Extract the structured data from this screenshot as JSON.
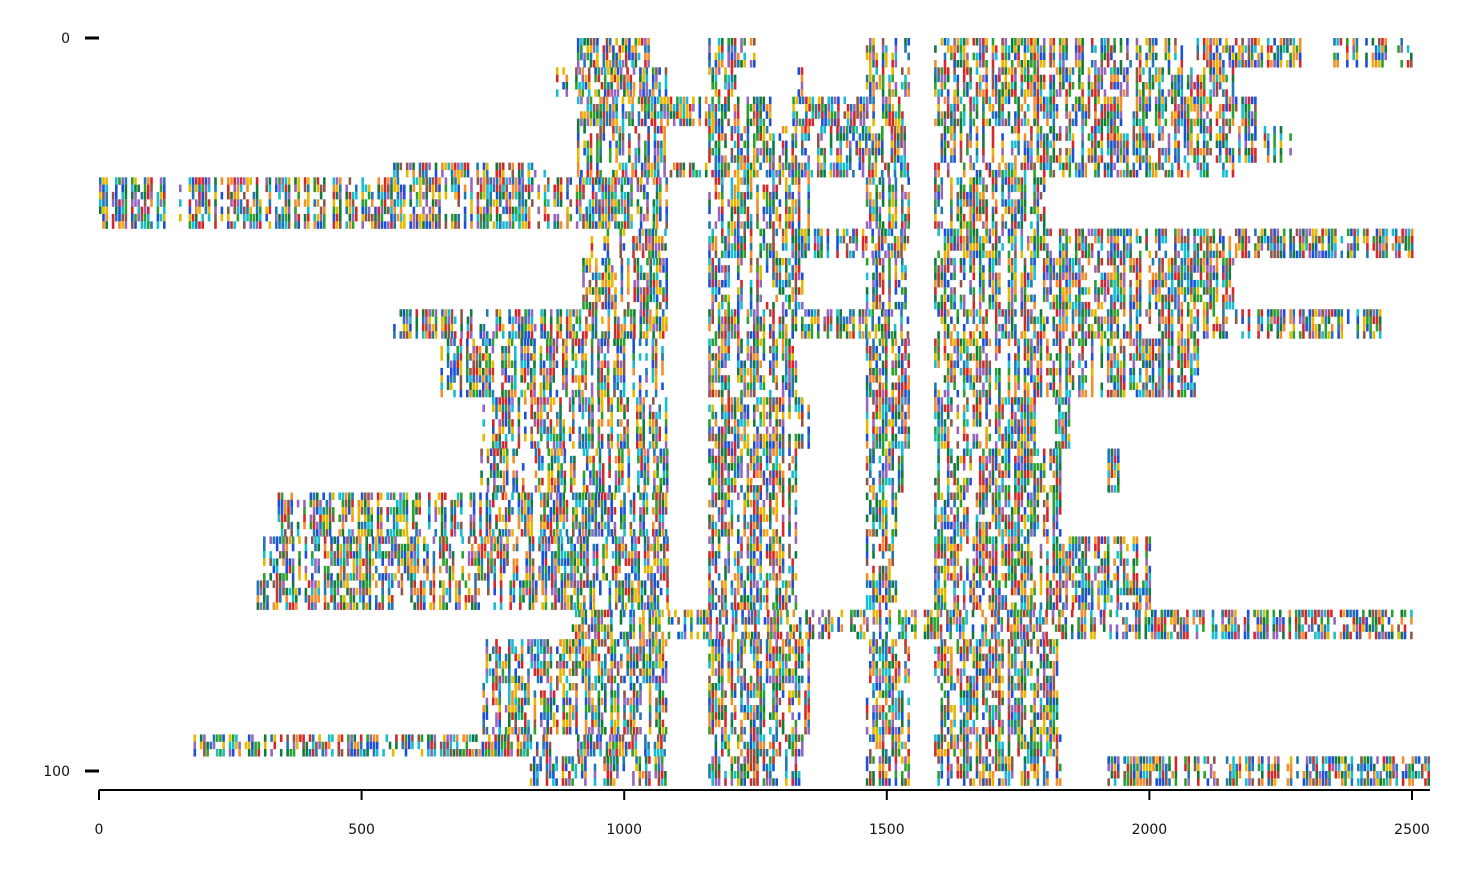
{
  "chart_data": {
    "type": "heatmap",
    "title": "",
    "xlabel": "",
    "ylabel": "",
    "xlim": [
      0,
      2530
    ],
    "ylim": [
      0,
      102
    ],
    "x_ticks": [
      {
        "value": 0,
        "label": "0"
      },
      {
        "value": 500,
        "label": "500"
      },
      {
        "value": 1000,
        "label": "1000"
      },
      {
        "value": 1500,
        "label": "1500"
      },
      {
        "value": 2000,
        "label": "2000"
      },
      {
        "value": 2500,
        "label": "2500"
      }
    ],
    "y_ticks": [
      {
        "value": 0,
        "label": "0"
      },
      {
        "value": 100,
        "label": "100"
      }
    ],
    "grid": false,
    "legend": "none",
    "palette": [
      "#d62728",
      "#2ca02c",
      "#1f77b4",
      "#17becf",
      "#e6b800",
      "#8c564b",
      "#1b4fd8",
      "#9467bd",
      "#117a3a",
      "#f28e2b"
    ],
    "sequence_count": 102,
    "alignment_length": 2530,
    "aligned_blocks": [
      {
        "rows": [
          0,
          4
        ],
        "spans": [
          [
            910,
            1050
          ],
          [
            1160,
            1250
          ],
          [
            1460,
            1540
          ],
          [
            1590,
            2290
          ],
          [
            2350,
            2500
          ]
        ]
      },
      {
        "rows": [
          4,
          8
        ],
        "spans": [
          [
            870,
            1080
          ],
          [
            1160,
            1230
          ],
          [
            1330,
            1340
          ],
          [
            1460,
            1540
          ],
          [
            1590,
            2160
          ]
        ]
      },
      {
        "rows": [
          8,
          12
        ],
        "spans": [
          [
            910,
            1280
          ],
          [
            1320,
            1540
          ],
          [
            1590,
            2210
          ]
        ]
      },
      {
        "rows": [
          12,
          17
        ],
        "spans": [
          [
            910,
            1080
          ],
          [
            1160,
            1540
          ],
          [
            1590,
            2270
          ]
        ]
      },
      {
        "rows": [
          17,
          19
        ],
        "spans": [
          [
            560,
            850
          ],
          [
            910,
            1540
          ],
          [
            1590,
            2160
          ]
        ]
      },
      {
        "rows": [
          19,
          26
        ],
        "spans": [
          [
            0,
            1080
          ],
          [
            1160,
            1350
          ],
          [
            1460,
            1540
          ],
          [
            1590,
            1800
          ]
        ]
      },
      {
        "rows": [
          26,
          30
        ],
        "spans": [
          [
            930,
            1080
          ],
          [
            1160,
            1540
          ],
          [
            1590,
            2500
          ]
        ]
      },
      {
        "rows": [
          30,
          37
        ],
        "spans": [
          [
            920,
            1080
          ],
          [
            1160,
            1340
          ],
          [
            1460,
            1540
          ],
          [
            1590,
            2160
          ]
        ]
      },
      {
        "rows": [
          37,
          41
        ],
        "spans": [
          [
            560,
            1080
          ],
          [
            1160,
            1540
          ],
          [
            1590,
            2440
          ]
        ]
      },
      {
        "rows": [
          41,
          49
        ],
        "spans": [
          [
            650,
            1080
          ],
          [
            1160,
            1330
          ],
          [
            1460,
            1540
          ],
          [
            1590,
            2100
          ]
        ]
      },
      {
        "rows": [
          49,
          56
        ],
        "spans": [
          [
            730,
            1080
          ],
          [
            1160,
            1360
          ],
          [
            1460,
            1540
          ],
          [
            1590,
            1780
          ],
          [
            1820,
            1850
          ]
        ]
      },
      {
        "rows": [
          56,
          62
        ],
        "spans": [
          [
            720,
            1080
          ],
          [
            1160,
            1330
          ],
          [
            1460,
            1540
          ],
          [
            1590,
            1830
          ],
          [
            1920,
            1950
          ]
        ]
      },
      {
        "rows": [
          62,
          68
        ],
        "spans": [
          [
            340,
            1080
          ],
          [
            1160,
            1330
          ],
          [
            1460,
            1520
          ],
          [
            1590,
            1830
          ]
        ]
      },
      {
        "rows": [
          68,
          74
        ],
        "spans": [
          [
            300,
            1080
          ],
          [
            1160,
            1330
          ],
          [
            1460,
            1520
          ],
          [
            1590,
            2000
          ]
        ]
      },
      {
        "rows": [
          74,
          78
        ],
        "spans": [
          [
            300,
            1080
          ],
          [
            1160,
            1330
          ],
          [
            1460,
            1520
          ],
          [
            1590,
            2000
          ]
        ]
      },
      {
        "rows": [
          78,
          82
        ],
        "spans": [
          [
            900,
            2500
          ]
        ]
      },
      {
        "rows": [
          82,
          88
        ],
        "spans": [
          [
            730,
            1080
          ],
          [
            1160,
            1350
          ],
          [
            1460,
            1540
          ],
          [
            1590,
            1830
          ]
        ]
      },
      {
        "rows": [
          88,
          95
        ],
        "spans": [
          [
            730,
            1080
          ],
          [
            1160,
            1350
          ],
          [
            1460,
            1540
          ],
          [
            1590,
            1830
          ]
        ]
      },
      {
        "rows": [
          95,
          98
        ],
        "spans": [
          [
            180,
            860
          ],
          [
            910,
            1080
          ],
          [
            1160,
            1340
          ],
          [
            1460,
            1540
          ],
          [
            1590,
            1830
          ]
        ]
      },
      {
        "rows": [
          98,
          102
        ],
        "spans": [
          [
            820,
            1080
          ],
          [
            1160,
            1340
          ],
          [
            1460,
            1540
          ],
          [
            1590,
            1830
          ],
          [
            1920,
            2530
          ]
        ]
      }
    ]
  }
}
